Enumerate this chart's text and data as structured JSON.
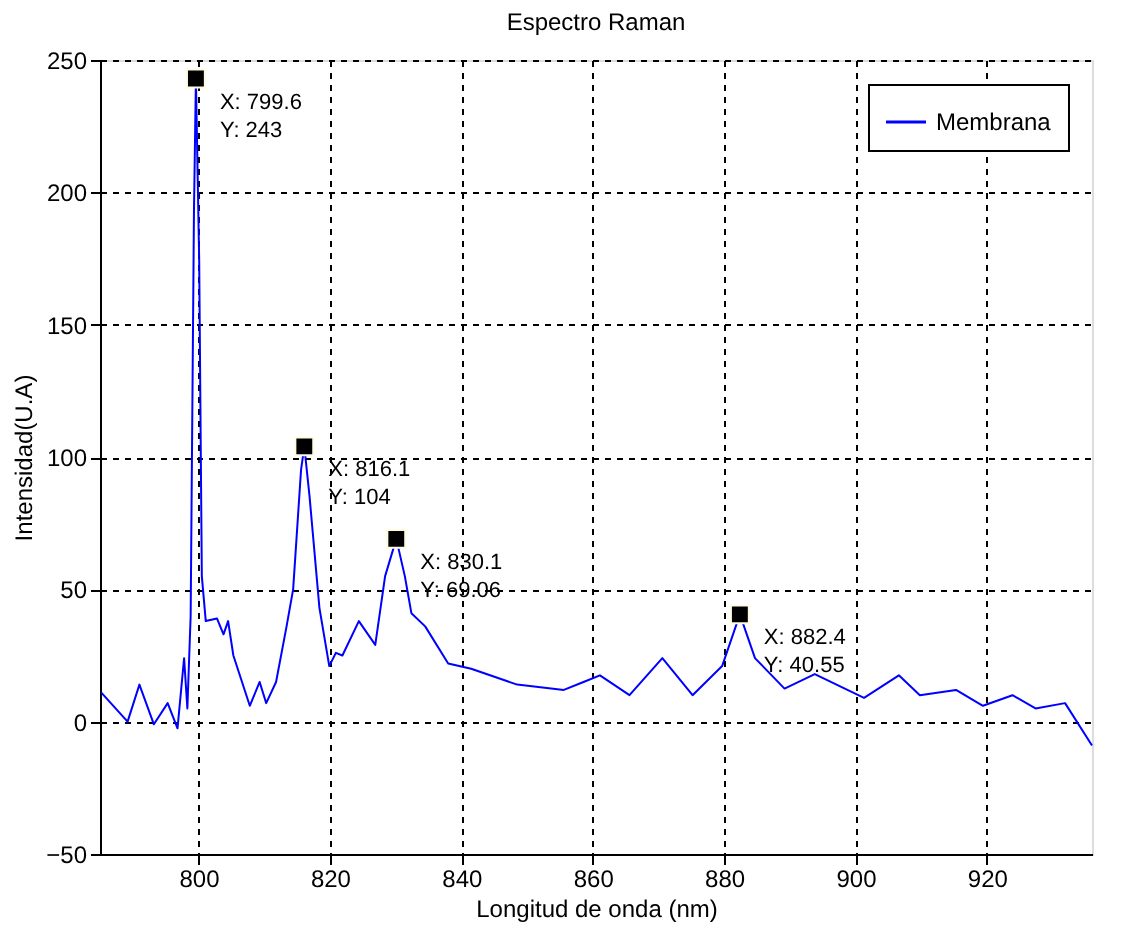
{
  "chart_data": {
    "type": "line",
    "title": "Espectro Raman",
    "xlabel": "Longitud de onda (nm)",
    "ylabel": "Intensidad(U.A)",
    "xlim": [
      785,
      936
    ],
    "xticks": [
      800,
      820,
      840,
      860,
      880,
      900,
      920
    ],
    "ylim": [
      -50,
      250
    ],
    "yticks": [
      -50,
      0,
      50,
      100,
      150,
      200,
      250
    ],
    "grid": true,
    "legend": "top right",
    "line_style": "solid",
    "marker": "none",
    "series": [
      {
        "name": "Membrana",
        "color": "#0000ff",
        "x": [
          785.2,
          789.2,
          791,
          793.2,
          795.3,
          796.8,
          797.8,
          798.3,
          798.8,
          799.3,
          799.6,
          800.1,
          800.5,
          801.1,
          802.8,
          803.8,
          804.5,
          805.3,
          807.8,
          809.3,
          810.3,
          811.8,
          813.4,
          814.4,
          815.6,
          816.1,
          816.9,
          818.4,
          819.9,
          820.9,
          821.9,
          824.4,
          826.9,
          828.4,
          830.1,
          831.4,
          832.4,
          834.5,
          838,
          841.5,
          848.5,
          855.6,
          858.6,
          861.1,
          865.6,
          870.6,
          875.2,
          879.7,
          882.4,
          884.7,
          889.2,
          893.8,
          901.3,
          906.6,
          909.8,
          915.3,
          919.4,
          923.9,
          927.4,
          931.9,
          936
        ],
        "values": [
          11,
          0,
          14,
          -1,
          7,
          -2.5,
          24,
          5,
          40,
          192,
          243,
          174,
          55,
          38,
          39,
          33,
          38,
          25,
          6,
          15,
          7,
          15,
          36,
          50,
          95,
          104,
          85,
          43,
          21,
          26,
          25,
          38,
          29,
          55,
          69.06,
          55,
          41,
          36,
          22,
          20,
          14,
          12,
          15,
          17.5,
          10,
          24,
          10,
          21,
          40.55,
          24,
          12.5,
          18,
          9,
          17.5,
          10,
          12,
          6,
          10,
          5,
          7,
          -9
        ]
      }
    ],
    "annotations": [
      {
        "text": "X: 799.6\nY: 243",
        "x": 799.6,
        "y": 243
      },
      {
        "text": "X: 816.1\nY: 104",
        "x": 816.1,
        "y": 104
      },
      {
        "text": "X: 830.1\nY: 69.06",
        "x": 830.1,
        "y": 69.06
      },
      {
        "text": "X: 882.4\nY: 40.55",
        "x": 882.4,
        "y": 40.55
      }
    ]
  }
}
